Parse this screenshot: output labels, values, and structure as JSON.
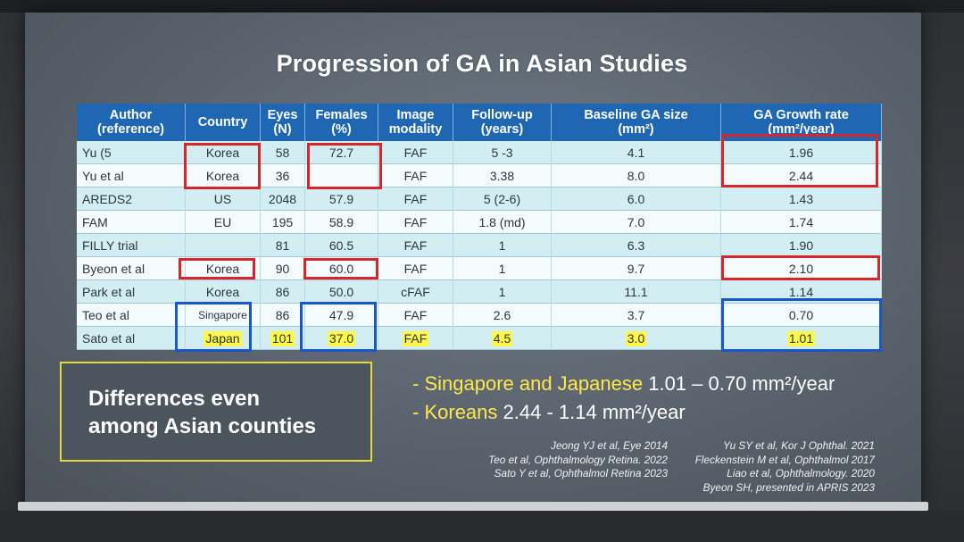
{
  "title": "Progression of GA in Asian Studies",
  "table": {
    "headers": [
      "Author\n(reference)",
      "Country",
      "Eyes\n(N)",
      "Females\n(%)",
      "Image\nmodality",
      "Follow-up\n(years)",
      "Baseline GA size\n(mm²)",
      "GA Growth rate\n(mm²/year)"
    ],
    "rows": [
      [
        "Yu (5",
        "Korea",
        "58",
        "72.7",
        "FAF",
        "5 -3",
        "4.1",
        "1.96"
      ],
      [
        "Yu et al",
        "Korea",
        "36",
        "",
        "FAF",
        "3.38",
        "8.0",
        "2.44"
      ],
      [
        "AREDS2",
        "US",
        "2048",
        "57.9",
        "FAF",
        "5 (2-6)",
        "6.0",
        "1.43"
      ],
      [
        "FAM",
        "EU",
        "195",
        "58.9",
        "FAF",
        "1.8 (md)",
        "7.0",
        "1.74"
      ],
      [
        "FILLY trial",
        "",
        "81",
        "60.5",
        "FAF",
        "1",
        "6.3",
        "1.90"
      ],
      [
        "Byeon et al",
        "Korea",
        "90",
        "60.0",
        "FAF",
        "1",
        "9.7",
        "2.10"
      ],
      [
        "Park et al",
        "Korea",
        "86",
        "50.0",
        "cFAF",
        "1",
        "11.1",
        "1.14"
      ],
      [
        "Teo et al",
        "Singapore",
        "86",
        "47.9",
        "FAF",
        "2.6",
        "3.7",
        "0.70"
      ],
      [
        "Sato et al",
        "Japan",
        "101",
        "37.0",
        "FAF",
        "4.5",
        "3.0",
        "1.01"
      ]
    ]
  },
  "summary_box": "Differences even\namong Asian counties",
  "bullets": [
    {
      "dash": "- ",
      "highlight": "Singapore and Japanese",
      "rest": " 1.01 – 0.70 mm²/year"
    },
    {
      "dash": "- ",
      "highlight": "Koreans",
      "rest": " 2.44 - 1.14 mm²/year"
    }
  ],
  "references_left": [
    "Jeong YJ et al, Eye 2014",
    "Teo et al, Ophthalmology Retina. 2022",
    "Sato Y et al, Ophthalmol Retina 2023"
  ],
  "references_right": [
    "Yu SY et al, Kor J Ophthal. 2021",
    "Fleckenstein M et al, Ophthalmol 2017",
    "Liao et al, Ophthalmology. 2020",
    "Byeon SH, presented in APRIS 2023"
  ],
  "colors": {
    "header_blue": "#1f67b3",
    "marker_red": "#d6262b",
    "marker_blue": "#1856c9",
    "highlight_yellow": "#fff74a",
    "bullet_yellow": "#ffe84a"
  }
}
